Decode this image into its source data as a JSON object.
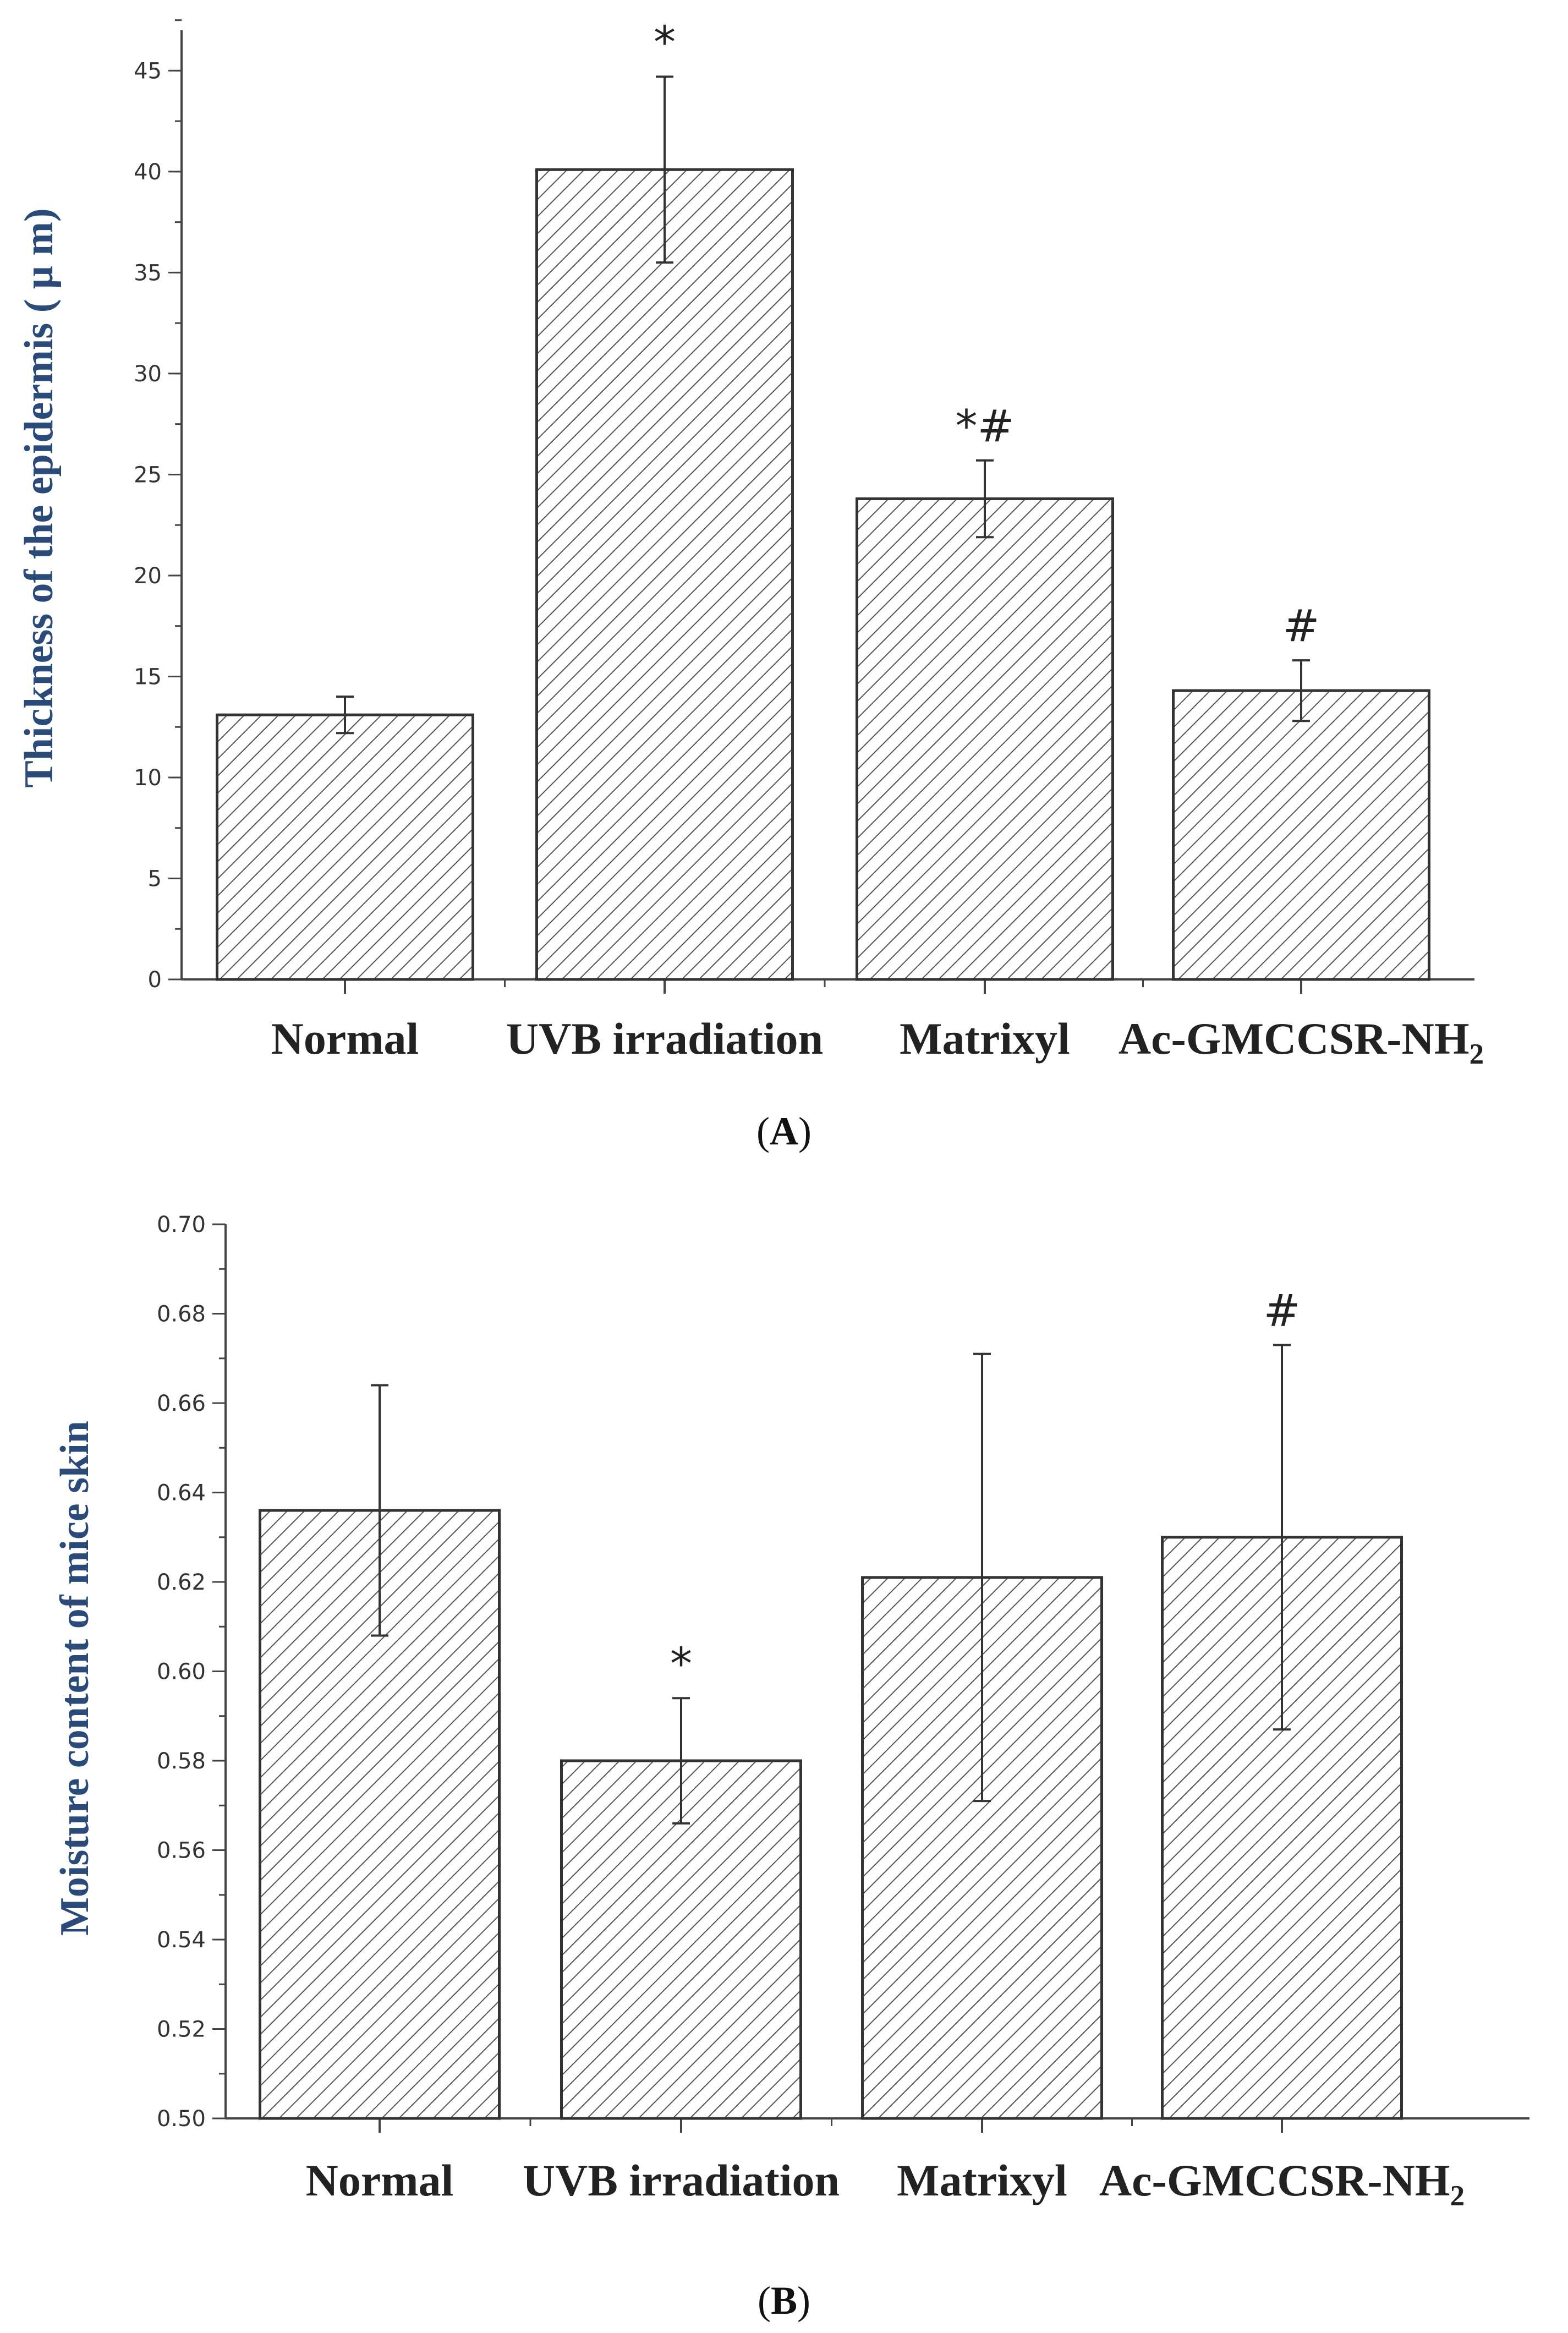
{
  "colors": {
    "axis_title": "#2a4a7a",
    "axis": "#444444",
    "bar_edge": "#333333",
    "hatch": "#555555"
  },
  "chart_data": [
    {
      "type": "bar",
      "panel": "A",
      "panel_label": {
        "open": "(",
        "letter": "A",
        "close": ")"
      },
      "title": "",
      "ylabel": "Thickness of the epidermis ( μ m)",
      "xlabel": "",
      "categories": [
        "Normal",
        "UVB irradiation",
        "Matrixyl",
        "Ac-GMCCSR-NH"
      ],
      "category_subscripts": [
        "",
        "",
        "",
        "2"
      ],
      "values": [
        13.1,
        40.1,
        23.8,
        14.3
      ],
      "errors": [
        0.9,
        4.6,
        1.9,
        1.5
      ],
      "significance": [
        "",
        "*",
        "*#",
        "#"
      ],
      "ylim": [
        0,
        47
      ],
      "yticks": [
        "0",
        "5",
        "10",
        "15",
        "20",
        "25",
        "30",
        "35",
        "40",
        "45"
      ],
      "yticks_values": [
        0,
        5,
        10,
        15,
        20,
        25,
        30,
        35,
        40,
        45
      ],
      "minor_step": 2.5,
      "pattern": "diagonal-hatch",
      "grid": false
    },
    {
      "type": "bar",
      "panel": "B",
      "panel_label": {
        "open": "(",
        "letter": "B",
        "close": ")"
      },
      "title": "",
      "ylabel": "Moisture content of mice skin",
      "xlabel": "",
      "categories": [
        "Normal",
        "UVB irradiation",
        "Matrixyl",
        "Ac-GMCCSR-NH"
      ],
      "category_subscripts": [
        "",
        "",
        "",
        "2"
      ],
      "values": [
        0.636,
        0.58,
        0.621,
        0.63
      ],
      "errors": [
        0.028,
        0.014,
        0.05,
        0.043
      ],
      "significance": [
        "",
        "*",
        "",
        "#"
      ],
      "ylim": [
        0.5,
        0.7
      ],
      "yticks": [
        "0.50",
        "0.52",
        "0.54",
        "0.56",
        "0.58",
        "0.60",
        "0.62",
        "0.64",
        "0.66",
        "0.68",
        "0.70"
      ],
      "yticks_values": [
        0.5,
        0.52,
        0.54,
        0.56,
        0.58,
        0.6,
        0.62,
        0.64,
        0.66,
        0.68,
        0.7
      ],
      "minor_step": 0.01,
      "pattern": "diagonal-hatch",
      "grid": false
    }
  ]
}
